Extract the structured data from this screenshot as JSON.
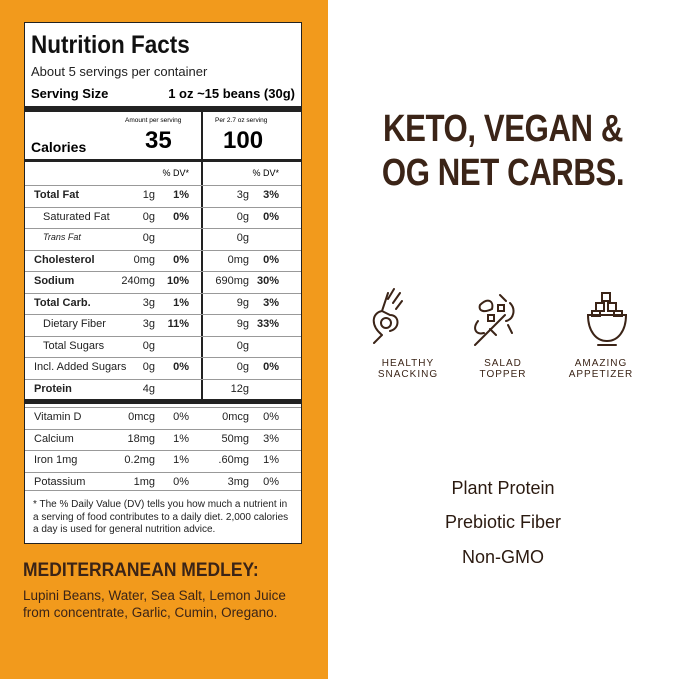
{
  "label": {
    "title": "Nutrition Facts",
    "servings": "About 5 servings per container",
    "serving_size_label": "Serving Size",
    "serving_size": "1 oz ~15 beans (30g)",
    "col_headers": [
      "Amount per serving",
      "Per 2.7 oz serving"
    ],
    "calories_label": "Calories",
    "calories": [
      35,
      100
    ],
    "dv_headers": [
      "% DV*",
      "% DV*"
    ],
    "rows": [
      [
        "Total Fat",
        "1g",
        "1%",
        "3g",
        "3%"
      ],
      [
        "Saturated Fat",
        "0g",
        "0%",
        "0g",
        "0%"
      ],
      [
        "Trans Fat",
        "0g",
        null,
        "0g",
        null
      ],
      [
        "Cholesterol",
        "0mg",
        "0%",
        "0mg",
        "0%"
      ],
      [
        "Sodium",
        "240mg",
        "10%",
        "690mg",
        "30%"
      ],
      [
        "Total Carb.",
        "3g",
        "1%",
        "9g",
        "3%"
      ],
      [
        "Dietary Fiber",
        "3g",
        "11%",
        "9g",
        "33%"
      ],
      [
        "Total Sugars",
        "0g",
        null,
        "0g",
        null
      ],
      [
        "Incl. Added Sugars",
        "0g",
        "0%",
        "0g",
        "0%"
      ],
      [
        "Protein",
        "4g",
        null,
        "12g",
        null
      ]
    ],
    "vitamins": [
      [
        "Vitamin D",
        "0mcg",
        "0%",
        "0mcg",
        "0%"
      ],
      [
        "Calcium",
        "18mg",
        "1%",
        "50mg",
        "3%"
      ],
      [
        "Iron 1mg",
        "0.2mg",
        "1%",
        ".60mg",
        "1%"
      ],
      [
        "Potassium",
        "1mg",
        "0%",
        "3mg",
        "0%"
      ]
    ],
    "footnote": "* The % Daily Value (DV) tells you how much a nutrient in a serving of food contributes to a daily diet. 2,000 calories a day is used for general nutrition advice."
  },
  "ingredients": {
    "title": "MEDITERRANEAN MEDLEY:",
    "text": "Lupini Beans, Water, Sea Salt, Lemon Juice from concentrate, Garlic, Cumin, Oregano."
  },
  "headline": [
    "KETO, VEGAN &",
    "OG NET CARBS."
  ],
  "icons": [
    [
      "HEALTHY",
      "SNACKING"
    ],
    [
      "SALAD",
      "TOPPER"
    ],
    [
      "AMAZING",
      "APPETIZER"
    ]
  ],
  "features": [
    "Plant Protein",
    "Prebiotic Fiber",
    "Non-GMO"
  ]
}
